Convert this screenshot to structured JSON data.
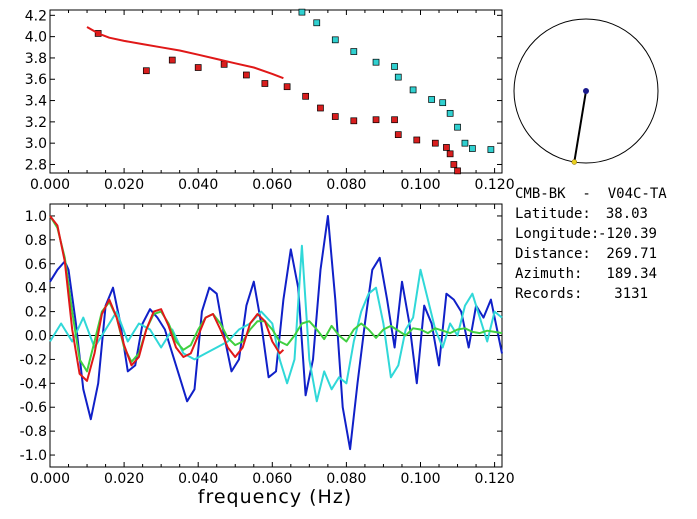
{
  "chart_data": [
    {
      "type": "scatter",
      "xlim": [
        0.0,
        0.122
      ],
      "ylim": [
        2.72,
        4.25
      ],
      "xticks": [
        "0.000",
        "0.020",
        "0.040",
        "0.060",
        "0.080",
        "0.100",
        "0.120"
      ],
      "yticks": [
        "2.8",
        "3.0",
        "3.2",
        "3.4",
        "3.6",
        "3.8",
        "4.0",
        "4.2"
      ],
      "grid": false,
      "series": [
        {
          "kind": "points",
          "color": "#d81e1e",
          "x": [
            0.013,
            0.026,
            0.033,
            0.04,
            0.047,
            0.053,
            0.058,
            0.064,
            0.069,
            0.073,
            0.077,
            0.082,
            0.088,
            0.093,
            0.094,
            0.099,
            0.104,
            0.107,
            0.108,
            0.109,
            0.11
          ],
          "y": [
            4.03,
            3.68,
            3.78,
            3.71,
            3.74,
            3.64,
            3.56,
            3.53,
            3.44,
            3.33,
            3.25,
            3.21,
            3.22,
            3.22,
            3.08,
            3.03,
            3.0,
            2.96,
            2.9,
            2.8,
            2.74
          ]
        },
        {
          "kind": "points",
          "color": "#30d0d0",
          "x": [
            0.068,
            0.072,
            0.077,
            0.082,
            0.088,
            0.093,
            0.094,
            0.098,
            0.103,
            0.106,
            0.108,
            0.11,
            0.112,
            0.114,
            0.119
          ],
          "y": [
            4.23,
            4.13,
            3.97,
            3.86,
            3.76,
            3.72,
            3.62,
            3.5,
            3.41,
            3.38,
            3.28,
            3.15,
            3.0,
            2.95,
            2.94
          ]
        },
        {
          "kind": "line",
          "color": "#e01818",
          "x": [
            0.01,
            0.013,
            0.016,
            0.02,
            0.025,
            0.03,
            0.035,
            0.04,
            0.045,
            0.05,
            0.055,
            0.06,
            0.063
          ],
          "y": [
            4.09,
            4.03,
            3.99,
            3.96,
            3.93,
            3.9,
            3.87,
            3.83,
            3.79,
            3.75,
            3.71,
            3.65,
            3.61
          ]
        }
      ]
    },
    {
      "type": "line",
      "xlim": [
        0.0,
        0.122
      ],
      "ylim": [
        -1.1,
        1.1
      ],
      "xticks": [
        "0.000",
        "0.020",
        "0.040",
        "0.060",
        "0.080",
        "0.100",
        "0.120"
      ],
      "yticks": [
        "1.0",
        "0.8",
        "0.6",
        "0.4",
        "0.2",
        "0.0",
        "-0.2",
        "-0.4",
        "-0.6",
        "-0.8",
        "-1.0"
      ],
      "xlabel": "frequency (Hz)",
      "grid": false,
      "zero_line": true,
      "series": [
        {
          "color": "#1020c8",
          "x": [
            0.0,
            0.002,
            0.004,
            0.005,
            0.007,
            0.009,
            0.011,
            0.013,
            0.015,
            0.017,
            0.019,
            0.021,
            0.023,
            0.025,
            0.027,
            0.029,
            0.031,
            0.033,
            0.035,
            0.037,
            0.039,
            0.041,
            0.043,
            0.045,
            0.047,
            0.049,
            0.051,
            0.053,
            0.055,
            0.057,
            0.059,
            0.061,
            0.063,
            0.065,
            0.067,
            0.069,
            0.071,
            0.073,
            0.075,
            0.077,
            0.079,
            0.081,
            0.083,
            0.085,
            0.087,
            0.089,
            0.091,
            0.093,
            0.095,
            0.097,
            0.099,
            0.101,
            0.103,
            0.105,
            0.107,
            0.109,
            0.111,
            0.113,
            0.115,
            0.117,
            0.119,
            0.121,
            0.122
          ],
          "y": [
            0.45,
            0.55,
            0.62,
            0.55,
            0.1,
            -0.45,
            -0.7,
            -0.4,
            0.25,
            0.4,
            0.1,
            -0.3,
            -0.25,
            0.1,
            0.22,
            0.15,
            0.05,
            -0.15,
            -0.35,
            -0.55,
            -0.45,
            0.2,
            0.4,
            0.35,
            0.0,
            -0.3,
            -0.2,
            0.25,
            0.45,
            0.1,
            -0.35,
            -0.3,
            0.3,
            0.72,
            0.4,
            -0.5,
            -0.2,
            0.55,
            1.0,
            0.3,
            -0.6,
            -0.95,
            -0.4,
            0.1,
            0.55,
            0.65,
            0.3,
            -0.1,
            0.45,
            0.1,
            -0.4,
            0.25,
            0.1,
            -0.25,
            0.35,
            0.3,
            0.2,
            -0.1,
            0.25,
            0.15,
            0.3,
            0.0,
            -0.15
          ]
        },
        {
          "color": "#30d8d8",
          "x": [
            0.0,
            0.003,
            0.006,
            0.009,
            0.012,
            0.015,
            0.018,
            0.021,
            0.024,
            0.027,
            0.03,
            0.033,
            0.036,
            0.039,
            0.042,
            0.045,
            0.048,
            0.051,
            0.054,
            0.057,
            0.06,
            0.062,
            0.064,
            0.066,
            0.068,
            0.07,
            0.072,
            0.074,
            0.076,
            0.078,
            0.08,
            0.082,
            0.084,
            0.086,
            0.088,
            0.09,
            0.092,
            0.094,
            0.096,
            0.098,
            0.1,
            0.102,
            0.104,
            0.106,
            0.108,
            0.11,
            0.112,
            0.114,
            0.116,
            0.118,
            0.12,
            0.122
          ],
          "y": [
            -0.05,
            0.1,
            -0.05,
            0.15,
            -0.1,
            0.05,
            0.2,
            -0.05,
            0.1,
            0.05,
            -0.1,
            0.05,
            -0.15,
            -0.2,
            -0.15,
            -0.1,
            -0.05,
            0.05,
            0.1,
            0.2,
            0.1,
            -0.2,
            -0.4,
            -0.2,
            0.75,
            -0.2,
            -0.55,
            -0.3,
            -0.45,
            -0.35,
            -0.4,
            -0.05,
            0.2,
            0.35,
            0.4,
            0.1,
            -0.35,
            -0.25,
            0.05,
            0.15,
            0.55,
            0.3,
            0.05,
            -0.1,
            0.1,
            0.0,
            0.25,
            0.35,
            0.15,
            -0.05,
            0.2,
            0.15
          ]
        },
        {
          "color": "#40d040",
          "x": [
            0.0,
            0.002,
            0.004,
            0.006,
            0.008,
            0.01,
            0.012,
            0.014,
            0.016,
            0.018,
            0.02,
            0.022,
            0.024,
            0.026,
            0.028,
            0.03,
            0.032,
            0.034,
            0.036,
            0.038,
            0.04,
            0.042,
            0.044,
            0.046,
            0.048,
            0.05,
            0.052,
            0.054,
            0.056,
            0.058,
            0.06,
            0.062,
            0.064,
            0.066,
            0.068,
            0.07,
            0.072,
            0.074,
            0.076,
            0.078,
            0.08,
            0.082,
            0.084,
            0.086,
            0.088,
            0.09,
            0.092,
            0.094,
            0.096,
            0.098,
            0.1,
            0.102,
            0.104,
            0.106,
            0.108,
            0.11,
            0.112,
            0.114,
            0.116,
            0.118,
            0.12,
            0.122
          ],
          "y": [
            1.0,
            0.9,
            0.65,
            0.2,
            -0.2,
            -0.3,
            -0.05,
            0.2,
            0.28,
            0.15,
            -0.1,
            -0.22,
            -0.15,
            0.05,
            0.18,
            0.2,
            0.1,
            -0.05,
            -0.12,
            -0.08,
            0.05,
            0.15,
            0.18,
            0.1,
            -0.02,
            -0.08,
            -0.05,
            0.05,
            0.12,
            0.12,
            0.05,
            -0.05,
            -0.08,
            0.0,
            0.1,
            0.12,
            0.05,
            -0.03,
            0.08,
            0.0,
            -0.05,
            0.05,
            0.1,
            0.05,
            -0.02,
            0.05,
            0.08,
            0.04,
            0.0,
            0.06,
            0.05,
            0.02,
            0.06,
            0.04,
            0.02,
            0.05,
            0.06,
            0.03,
            0.02,
            0.04,
            0.03,
            0.02
          ]
        },
        {
          "color": "#e01818",
          "x": [
            0.0,
            0.002,
            0.004,
            0.006,
            0.008,
            0.01,
            0.012,
            0.014,
            0.016,
            0.018,
            0.02,
            0.022,
            0.024,
            0.026,
            0.028,
            0.03,
            0.032,
            0.034,
            0.036,
            0.038,
            0.04,
            0.042,
            0.044,
            0.046,
            0.048,
            0.05,
            0.052,
            0.054,
            0.056,
            0.058,
            0.06,
            0.062,
            0.063
          ],
          "y": [
            1.0,
            0.92,
            0.62,
            0.05,
            -0.32,
            -0.38,
            -0.15,
            0.18,
            0.3,
            0.15,
            -0.08,
            -0.25,
            -0.18,
            0.05,
            0.2,
            0.22,
            0.08,
            -0.1,
            -0.18,
            -0.15,
            0.0,
            0.15,
            0.18,
            0.05,
            -0.1,
            -0.18,
            -0.1,
            0.1,
            0.18,
            0.12,
            -0.05,
            -0.15,
            -0.12
          ]
        }
      ]
    }
  ],
  "station": {
    "title": "CMB-BK  -  V04C-TA",
    "latitude_label": "Latitude:",
    "latitude_value": "38.03",
    "longitude_label": "Longitude:",
    "longitude_value": "-120.39",
    "distance_label": "Distance:",
    "distance_value": "269.71",
    "azimuth_label": "Azimuth:",
    "azimuth_value": "189.34",
    "records_label": "Records:",
    "records_value": "3131"
  },
  "azimuth_plot": {
    "azimuth_deg": 189.34,
    "receiver_color": "#1a1a8c",
    "source_color": "#e8d020"
  }
}
